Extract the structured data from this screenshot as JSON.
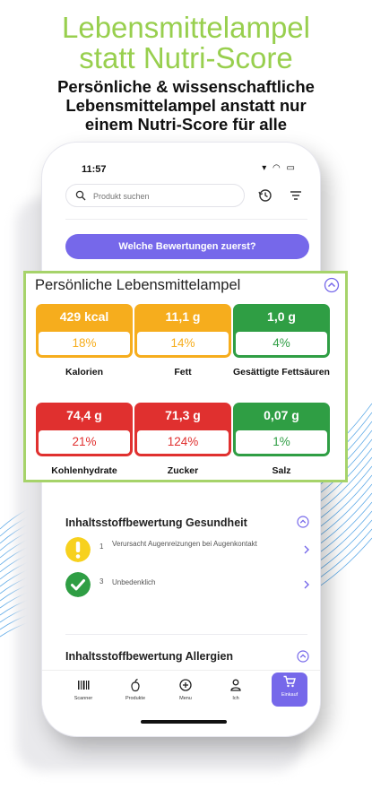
{
  "headline": {
    "line1": "Lebensmittelampel",
    "line2": "statt Nutri-Score"
  },
  "subline": {
    "line1": "Persönliche & wissenschaftliche",
    "line2": "Lebensmittelampel anstatt nur",
    "line3": "einem Nutri-Score für alle"
  },
  "status": {
    "time": "11:57",
    "icons": "▾ ◠ ▭"
  },
  "search": {
    "placeholder": "Produkt suchen"
  },
  "cta": {
    "label": "Welche Bewertungen zuerst?"
  },
  "ampel": {
    "title": "Persönliche Lebensmittelampel",
    "tiles": [
      {
        "value": "429 kcal",
        "percent": "18%",
        "label": "Kalorien",
        "color": "#f6ad1d"
      },
      {
        "value": "11,1 g",
        "percent": "14%",
        "label": "Fett",
        "color": "#f6ad1d"
      },
      {
        "value": "1,0 g",
        "percent": "4%",
        "label": "Gesättigte Fettsäuren",
        "color": "#2f9e44"
      },
      {
        "value": "74,4 g",
        "percent": "21%",
        "label": "Kohlenhydrate",
        "color": "#e0302f"
      },
      {
        "value": "71,3 g",
        "percent": "124%",
        "label": "Zucker",
        "color": "#e0302f"
      },
      {
        "value": "0,07 g",
        "percent": "1%",
        "label": "Salz",
        "color": "#2f9e44"
      }
    ]
  },
  "gesundheit": {
    "title": "Inhaltsstoffbewertung Gesundheit",
    "rows": [
      {
        "count": "1",
        "text": "Verursacht Augenreizungen bei Augenkontakt",
        "icon": "exclamation-icon",
        "color": "#f7d11e"
      },
      {
        "count": "3",
        "text": "Unbedenklich",
        "icon": "check-icon",
        "color": "#2f9e44"
      }
    ]
  },
  "allergien": {
    "title": "Inhaltsstoffbewertung Allergien"
  },
  "tabs": [
    {
      "label": "Scanner",
      "icon": "barcode-icon"
    },
    {
      "label": "Produkte",
      "icon": "produce-icon"
    },
    {
      "label": "Menu",
      "icon": "plus-circle-icon"
    },
    {
      "label": "Ich",
      "icon": "person-icon"
    },
    {
      "label": "Einkauf",
      "icon": "cart-icon"
    }
  ],
  "colors": {
    "accent": "#7668ea",
    "green_title": "#98cf4e",
    "overlay_border": "#a6d36a"
  }
}
